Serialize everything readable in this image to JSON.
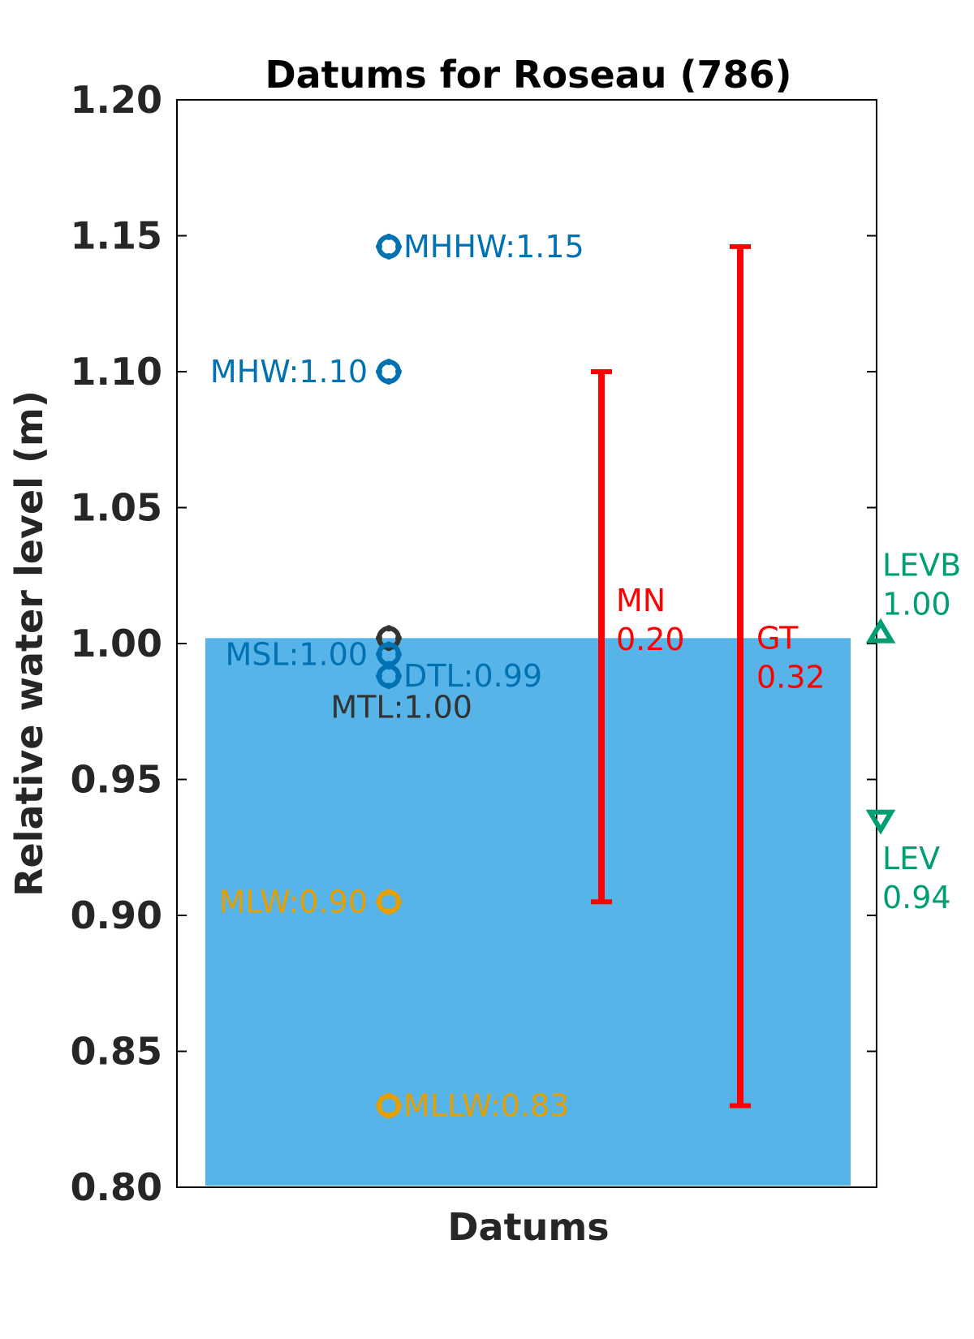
{
  "chart_data": {
    "type": "scatter",
    "title": "Datums for Roseau (786)",
    "xlabel": "Datums",
    "ylabel": "Relative water level (m)",
    "ylim": [
      0.8,
      1.2
    ],
    "yticks": [
      "0.80",
      "0.85",
      "0.90",
      "0.95",
      "1.00",
      "1.05",
      "1.10",
      "1.15",
      "1.20"
    ],
    "grid": false,
    "background_bar": {
      "top": 1.002,
      "color": "#56b4e9"
    },
    "datums": [
      {
        "label": "MHHW:1.15",
        "value": 1.146,
        "color": "#0072b2",
        "side": "right"
      },
      {
        "label": "MHW:1.10",
        "value": 1.1,
        "color": "#0072b2",
        "side": "left"
      },
      {
        "label": "MTL:1.00",
        "value": 1.002,
        "color": "#333333",
        "side": "below"
      },
      {
        "label": "MSL:1.00",
        "value": 0.996,
        "color": "#0072b2",
        "side": "left"
      },
      {
        "label": "DTL:0.99",
        "value": 0.988,
        "color": "#0072b2",
        "side": "right"
      },
      {
        "label": "MLW:0.90",
        "value": 0.905,
        "color": "#e69f00",
        "side": "left"
      },
      {
        "label": "MLLW:0.83",
        "value": 0.83,
        "color": "#e69f00",
        "side": "right"
      }
    ],
    "ranges": [
      {
        "name": "MN",
        "value_text": "0.20",
        "low": 0.905,
        "high": 1.1,
        "color": "#ff0000"
      },
      {
        "name": "GT",
        "value_text": "0.32",
        "low": 0.83,
        "high": 1.146,
        "color": "#ff0000"
      }
    ],
    "extremes": [
      {
        "name": "LEVB",
        "value_text": "1.00",
        "value": 1.004,
        "marker": "triangle-up",
        "color": "#009e73"
      },
      {
        "name": "LEV",
        "value_text": "0.94",
        "value": 0.935,
        "marker": "triangle-down",
        "color": "#009e73"
      }
    ]
  }
}
